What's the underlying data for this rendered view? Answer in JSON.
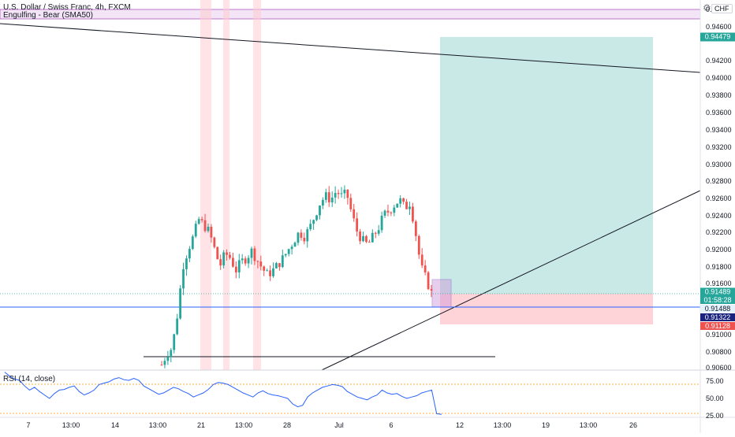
{
  "header": {
    "title": "U.S. Dollar / Swiss Franc, 4h, FXCM",
    "currency": "CHF",
    "indicator_band_label": "Engulfing - Bear (SMA50)",
    "rsi_label": "RSI (14, close)"
  },
  "price_axis": {
    "ticks": [
      "0.94600",
      "0.94200",
      "0.94000",
      "0.93800",
      "0.93600",
      "0.93400",
      "0.93200",
      "0.93000",
      "0.92800",
      "0.92600",
      "0.92400",
      "0.92200",
      "0.92000",
      "0.91800",
      "0.91600",
      "0.91000",
      "0.90800",
      "0.90600"
    ],
    "top_partial": "0."
  },
  "rsi_axis": {
    "ticks": [
      "75.00",
      "50.00",
      "25.00"
    ]
  },
  "time_axis": {
    "labels": [
      "7",
      "13:00",
      "14",
      "13:00",
      "21",
      "13:00",
      "28",
      "Jul",
      "6",
      "12",
      "13:00",
      "19",
      "13:00",
      "26"
    ]
  },
  "price_badges": {
    "target": "0.94479",
    "current": "0.91489",
    "countdown": "01:58:28",
    "level": "0.91488",
    "entry": "0.91322",
    "stop": "0.91128"
  },
  "colors": {
    "up": "#26a69a",
    "down": "#ef5350",
    "profit_zone": "#b2dfdb",
    "loss_zone": "#ffcdd2",
    "horizontal_line": "#2962ff",
    "band": "#e1bee7",
    "rsi_line": "#2962ff"
  },
  "chart_data": {
    "type": "candlestick",
    "symbol": "USDCHF",
    "timeframe": "4h",
    "price_range": [
      0.906,
      0.948
    ],
    "levels": {
      "target": 0.94479,
      "current": 0.91489,
      "horizontal": 0.91488,
      "entry": 0.91322,
      "stop": 0.91128
    },
    "close_path": [
      0.9065,
      0.9078,
      0.9085,
      0.9125,
      0.918,
      0.92,
      0.9215,
      0.9235,
      0.9228,
      0.922,
      0.92,
      0.918,
      0.9195,
      0.919,
      0.9175,
      0.9185,
      0.919,
      0.9198,
      0.9188,
      0.9178,
      0.917,
      0.9175,
      0.9182,
      0.919,
      0.92,
      0.921,
      0.922,
      0.9215,
      0.9225,
      0.924,
      0.9255,
      0.9262,
      0.9258,
      0.9268,
      0.9262,
      0.9265,
      0.924,
      0.922,
      0.921,
      0.9205,
      0.9215,
      0.9225,
      0.924,
      0.9245,
      0.9252,
      0.9258,
      0.9248,
      0.9255,
      0.922,
      0.918,
      0.9165,
      0.9149
    ],
    "rsi": {
      "upper": 70,
      "lower": 30,
      "values": [
        88,
        82,
        78,
        76,
        68,
        62,
        66,
        60,
        55,
        50,
        57,
        62,
        63,
        66,
        68,
        60,
        55,
        58,
        62,
        70,
        72,
        74,
        78,
        80,
        77,
        76,
        79,
        76,
        68,
        64,
        60,
        56,
        58,
        62,
        66,
        64,
        60,
        57,
        52,
        55,
        58,
        63,
        70,
        73,
        72,
        70,
        66,
        62,
        58,
        55,
        52,
        58,
        61,
        57,
        55,
        54,
        52,
        50,
        42,
        38,
        40,
        52,
        58,
        62,
        66,
        68,
        70,
        69,
        67,
        60,
        56,
        52,
        50,
        48,
        52,
        55,
        62,
        58,
        56,
        57,
        53,
        50,
        52,
        54,
        58,
        60,
        62,
        28,
        27
      ]
    }
  }
}
